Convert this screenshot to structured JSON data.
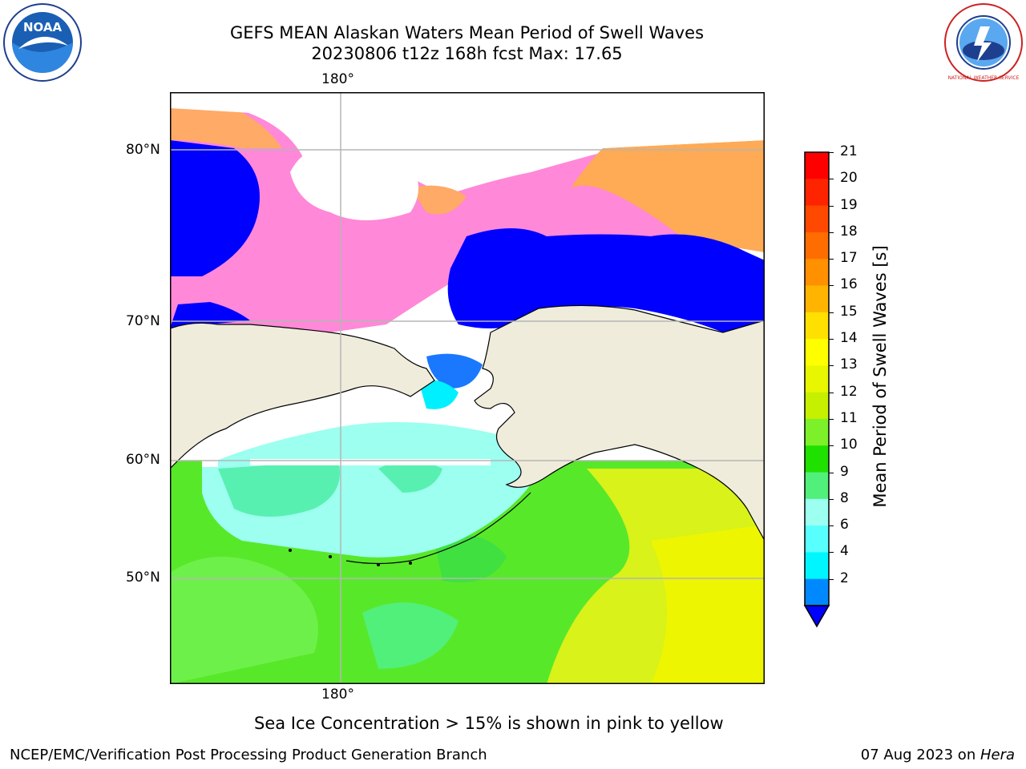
{
  "title": {
    "line1": "GEFS MEAN Alaskan Waters Mean Period of Swell Waves",
    "line2": "20230806 t12z 168h fcst   Max: 17.65"
  },
  "map": {
    "lon_labels": [
      "180°",
      "180°"
    ],
    "lat_labels": [
      "80°N",
      "70°N",
      "60°N",
      "50°N"
    ],
    "colors": {
      "land": "#efecdc",
      "grid": "#b5b5b5",
      "ice_fill": "#ffffff",
      "coast": "#000000"
    }
  },
  "colorbar": {
    "label": "Mean Period of Swell Waves [s]",
    "ticks": [
      "21",
      "20",
      "19",
      "18",
      "17",
      "16",
      "15",
      "14",
      "13",
      "12",
      "11",
      "10",
      "9",
      "8",
      "6",
      "4",
      "2"
    ],
    "colors": [
      "#ff0000",
      "#ff2400",
      "#ff4800",
      "#ff6c00",
      "#ff9000",
      "#ffb400",
      "#ffe000",
      "#ffff00",
      "#e8f700",
      "#c6f000",
      "#7cf028",
      "#20e000",
      "#50f07a",
      "#9cfff0",
      "#58ffff",
      "#00f6ff",
      "#0088ff"
    ],
    "under_color": "#0000ff"
  },
  "logos": {
    "noaa_text": "NOAA",
    "nws_text": "NATIONAL WEATHER SERVICE"
  },
  "notes": {
    "sea_ice": "Sea Ice Concentration > 15% is shown in pink to yellow",
    "producer": "NCEP/EMC/Verification Post Processing Product Generation Branch",
    "date": "07 Aug 2023 on ",
    "machine": "Hera"
  }
}
